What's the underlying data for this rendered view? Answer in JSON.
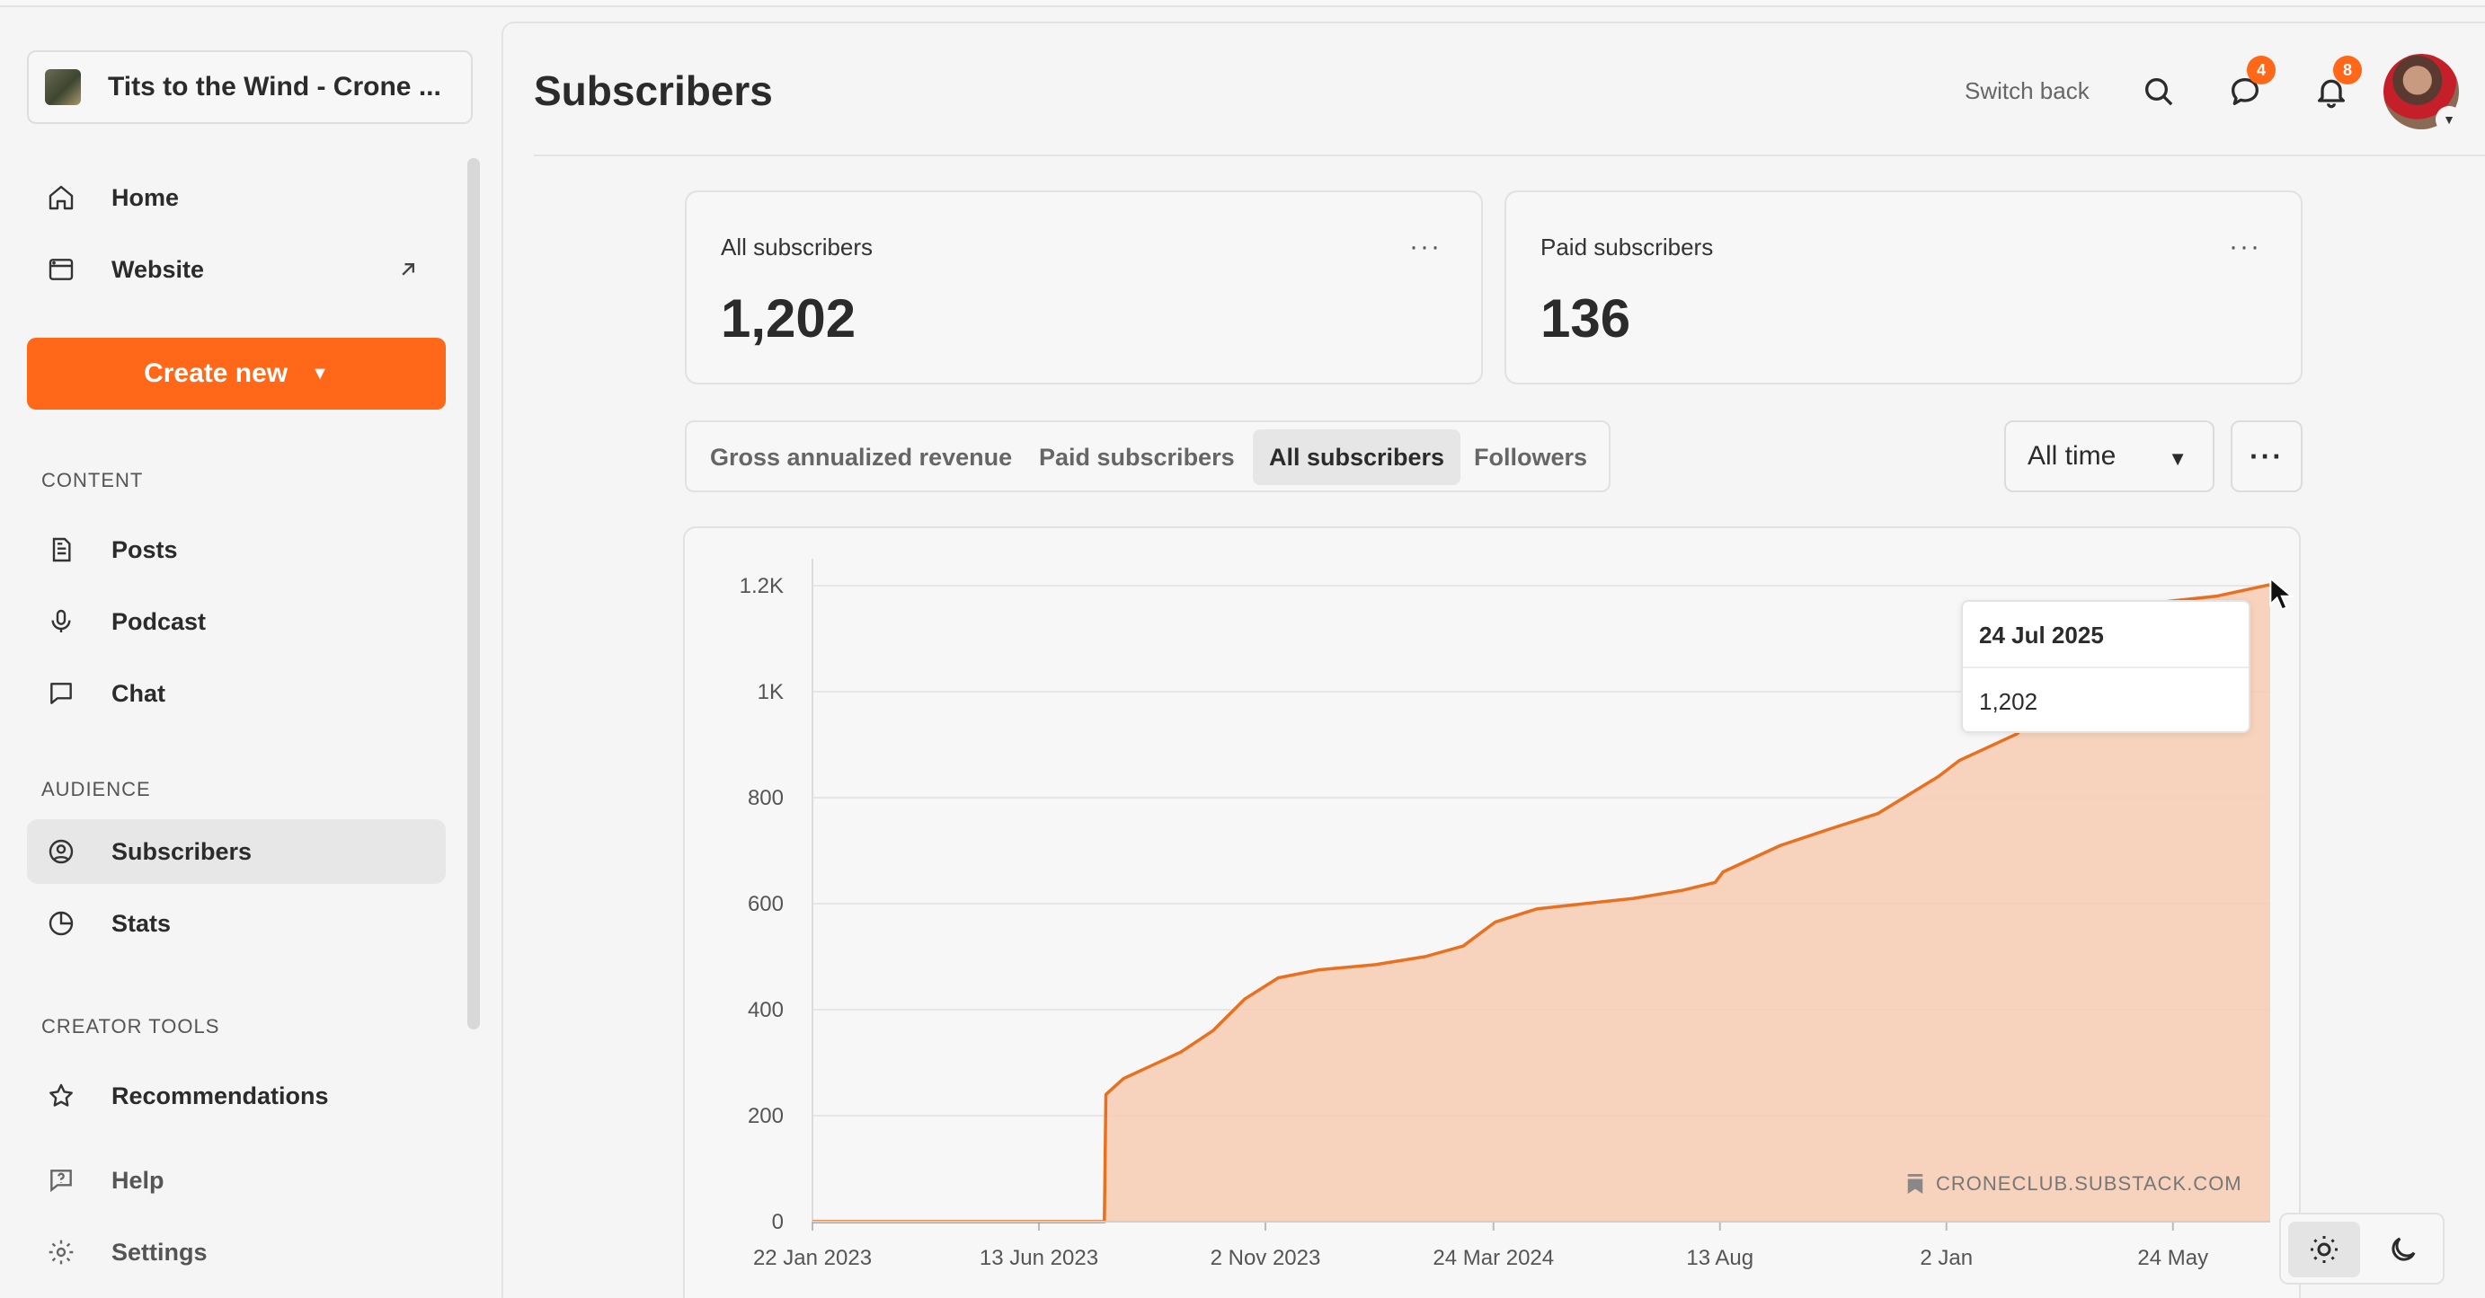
{
  "sidebar": {
    "publication_name": "Tits to the Wind - Crone ...",
    "nav_top": [
      {
        "label": "Home",
        "icon": "home-icon"
      },
      {
        "label": "Website",
        "icon": "browser-icon"
      }
    ],
    "create_label": "Create new",
    "sections": [
      {
        "label": "CONTENT",
        "items": [
          {
            "label": "Posts",
            "icon": "document-icon"
          },
          {
            "label": "Podcast",
            "icon": "microphone-icon"
          },
          {
            "label": "Chat",
            "icon": "chat-icon"
          }
        ]
      },
      {
        "label": "AUDIENCE",
        "items": [
          {
            "label": "Subscribers",
            "icon": "user-circle-icon",
            "active": true
          },
          {
            "label": "Stats",
            "icon": "pie-chart-icon"
          }
        ]
      },
      {
        "label": "CREATOR TOOLS",
        "items": [
          {
            "label": "Recommendations",
            "icon": "star-icon"
          }
        ]
      }
    ],
    "nav_bottom": [
      {
        "label": "Help",
        "icon": "help-icon"
      },
      {
        "label": "Settings",
        "icon": "gear-icon"
      }
    ]
  },
  "header": {
    "title": "Subscribers",
    "switch_back": "Switch back",
    "messages_badge": "4",
    "notifications_badge": "8"
  },
  "stats": {
    "all": {
      "label": "All subscribers",
      "value": "1,202"
    },
    "paid": {
      "label": "Paid subscribers",
      "value": "136"
    }
  },
  "tabs": [
    {
      "label": "Gross annualized revenue",
      "active": false
    },
    {
      "label": "Paid subscribers",
      "active": false
    },
    {
      "label": "All subscribers",
      "active": true
    },
    {
      "label": "Followers",
      "active": false
    }
  ],
  "range": {
    "label": "All time"
  },
  "tooltip": {
    "date": "24 Jul 2025",
    "value": "1,202"
  },
  "watermark": "CRONECLUB.SUBSTACK.COM",
  "colors": {
    "accent": "#ff6719",
    "line": "#e8701f",
    "area": "#f6cdb5"
  },
  "chart_data": {
    "type": "area",
    "title": "",
    "xlabel": "",
    "ylabel": "",
    "ylim": [
      0,
      1200
    ],
    "yticks": [
      0,
      200,
      400,
      600,
      800,
      1000,
      1200
    ],
    "ytick_labels": [
      "0",
      "200",
      "400",
      "600",
      "800",
      "1K",
      "1.2K"
    ],
    "xticks": [
      "2023-01-22",
      "2023-06-13",
      "2023-11-02",
      "2024-03-24",
      "2024-08-13",
      "2025-01-02",
      "2025-05-24"
    ],
    "xtick_labels": [
      "22 Jan 2023",
      "13 Jun 2023",
      "2 Nov 2023",
      "24 Mar 2024",
      "13 Aug",
      "2 Jan",
      "24 May"
    ],
    "xlim": [
      "2023-01-22",
      "2025-07-24"
    ],
    "series": [
      {
        "x": [
          "2023-01-22",
          "2023-07-24",
          "2023-07-25",
          "2023-08-05",
          "2023-09-10",
          "2023-09-30",
          "2023-10-20",
          "2023-11-10",
          "2023-12-05",
          "2024-01-10",
          "2024-02-10",
          "2024-03-05",
          "2024-03-25",
          "2024-04-20",
          "2024-05-20",
          "2024-06-20",
          "2024-07-20",
          "2024-08-10",
          "2024-08-15",
          "2024-09-20",
          "2024-10-20",
          "2024-11-20",
          "2024-12-28",
          "2025-01-10",
          "2025-02-15",
          "2025-03-20",
          "2025-04-20",
          "2025-05-20",
          "2025-06-20",
          "2025-07-24"
        ],
        "y": [
          0,
          0,
          240,
          270,
          320,
          360,
          420,
          460,
          475,
          485,
          500,
          520,
          565,
          590,
          600,
          610,
          625,
          640,
          660,
          710,
          740,
          770,
          840,
          870,
          920,
          1010,
          1080,
          1170,
          1180,
          1202
        ]
      }
    ]
  }
}
